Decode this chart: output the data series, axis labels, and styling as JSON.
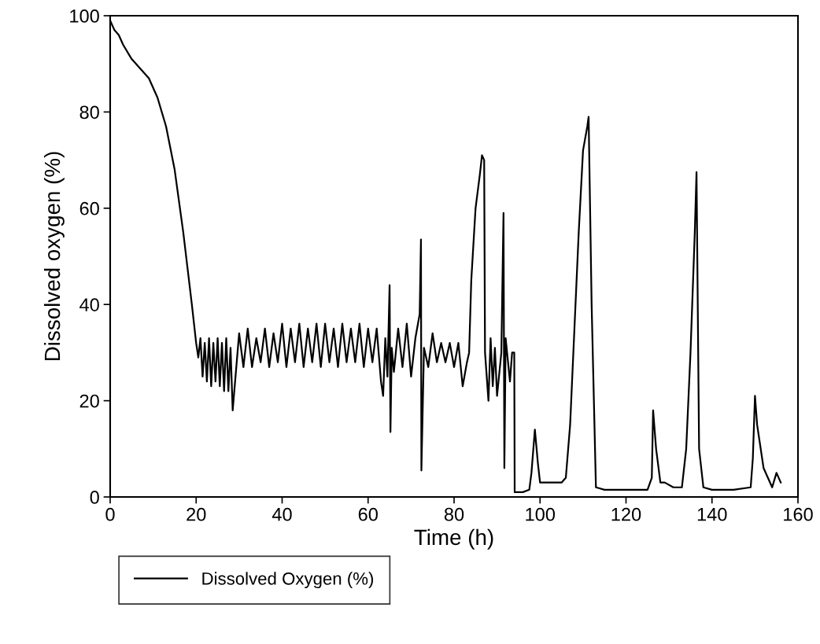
{
  "chart_data": {
    "type": "line",
    "xlabel": "Time (h)",
    "ylabel": "Dissolved oxygen (%)",
    "xlim": [
      0,
      160
    ],
    "ylim": [
      0,
      100
    ],
    "xticks": [
      0,
      20,
      40,
      60,
      80,
      100,
      120,
      140,
      160
    ],
    "yticks": [
      0,
      20,
      40,
      60,
      80,
      100
    ],
    "grid": false,
    "legend": "bottom left",
    "line_style": "solid",
    "marker": "none",
    "series": [
      {
        "name": "Dissolved Oxygen (%)",
        "color": "#000000",
        "x": [
          0,
          1,
          2,
          3,
          5,
          7,
          9,
          11,
          13,
          15,
          17,
          19,
          20,
          20.5,
          21,
          21.5,
          22,
          22.5,
          23,
          23.5,
          24,
          24.5,
          25,
          25.5,
          26,
          26.5,
          27,
          27.5,
          28,
          28.5,
          30,
          31,
          32,
          33,
          34,
          35,
          36,
          37,
          38,
          39,
          40,
          41,
          42,
          43,
          44,
          45,
          46,
          47,
          48,
          49,
          50,
          51,
          52,
          53,
          54,
          55,
          56,
          57,
          58,
          59,
          60,
          61,
          62,
          63,
          63.5,
          64,
          64.5,
          65,
          65.2,
          65.5,
          66,
          67,
          68,
          69,
          70,
          71,
          72,
          72.3,
          72.4,
          73,
          74,
          75,
          76,
          77,
          78,
          79,
          80,
          81,
          82,
          83,
          83.5,
          84,
          85,
          86,
          86.5,
          87,
          87.2,
          88,
          88.5,
          89,
          89.5,
          90,
          91,
          91.5,
          91.7,
          92,
          93,
          93.5,
          94,
          94.1,
          96,
          97.5,
          98,
          98.8,
          99.5,
          100,
          101,
          103,
          105,
          106,
          107,
          108,
          109,
          110,
          111,
          111.3,
          112,
          113,
          115,
          120,
          125,
          126,
          126.3,
          127,
          128,
          129,
          131,
          133,
          134,
          135,
          136,
          136.4,
          137,
          138,
          140,
          145,
          149,
          149.5,
          150,
          150.5,
          151,
          152,
          153,
          154,
          155,
          156
        ],
        "values": [
          99,
          97,
          96,
          94,
          91,
          89,
          87,
          83,
          77,
          68,
          55,
          40,
          32,
          29,
          33,
          25,
          32,
          24,
          33,
          23,
          32,
          24,
          33,
          23,
          32,
          22,
          33,
          22,
          31,
          18,
          34,
          27,
          35,
          27,
          33,
          28,
          35,
          27,
          34,
          28,
          36,
          27,
          35,
          28,
          36,
          27,
          35,
          28,
          36,
          27,
          36,
          28,
          35,
          27,
          36,
          28,
          35,
          28,
          36,
          27,
          35,
          28,
          35,
          24,
          21,
          33,
          25,
          44,
          13.5,
          31,
          26,
          35,
          27,
          36,
          25,
          33,
          38,
          53.5,
          5.5,
          31,
          27,
          34,
          28,
          32,
          28,
          32,
          27,
          32,
          23,
          28,
          30,
          45,
          60,
          67,
          71,
          70,
          30,
          20,
          33,
          23,
          31,
          21,
          30,
          59,
          6,
          33,
          24,
          30,
          30,
          1,
          1,
          1.5,
          5,
          14,
          7,
          3,
          3,
          3,
          3,
          4,
          15,
          35,
          55,
          72,
          77,
          79,
          40,
          2,
          1.5,
          1.5,
          1.5,
          4,
          18,
          10,
          3,
          3,
          2,
          2,
          10,
          30,
          55,
          67.5,
          10,
          2,
          1.5,
          1.5,
          2,
          8,
          21,
          15,
          12,
          6,
          4,
          2,
          5,
          3
        ]
      }
    ]
  }
}
